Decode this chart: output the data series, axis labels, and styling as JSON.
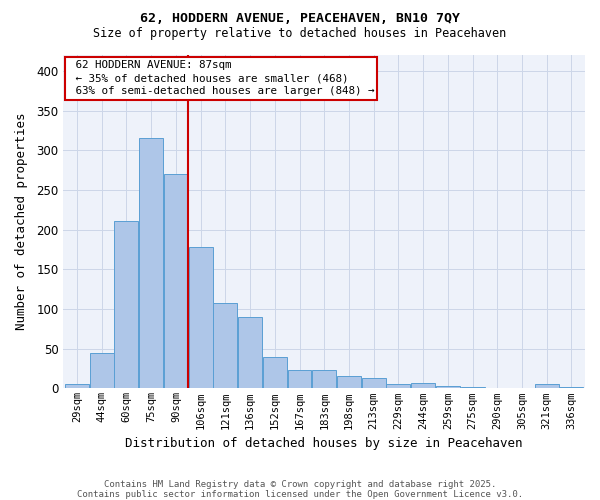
{
  "title1": "62, HODDERN AVENUE, PEACEHAVEN, BN10 7QY",
  "title2": "Size of property relative to detached houses in Peacehaven",
  "xlabel": "Distribution of detached houses by size in Peacehaven",
  "ylabel": "Number of detached properties",
  "bar_labels": [
    "29sqm",
    "44sqm",
    "60sqm",
    "75sqm",
    "90sqm",
    "106sqm",
    "121sqm",
    "136sqm",
    "152sqm",
    "167sqm",
    "183sqm",
    "198sqm",
    "213sqm",
    "229sqm",
    "244sqm",
    "259sqm",
    "275sqm",
    "290sqm",
    "305sqm",
    "321sqm",
    "336sqm"
  ],
  "bar_values": [
    5,
    44,
    211,
    315,
    270,
    178,
    108,
    90,
    40,
    23,
    23,
    15,
    13,
    5,
    7,
    3,
    2,
    0,
    0,
    5,
    2
  ],
  "bar_color": "#aec6e8",
  "bar_edge_color": "#5a9fd4",
  "property_label": "62 HODDERN AVENUE: 87sqm",
  "pct_smaller": "35% of detached houses are smaller (468)",
  "pct_larger": "63% of semi-detached houses are larger (848)",
  "red_line_color": "#cc0000",
  "annotation_box_color": "#cc0000",
  "ylim": [
    0,
    420
  ],
  "yticks": [
    0,
    50,
    100,
    150,
    200,
    250,
    300,
    350,
    400
  ],
  "grid_color": "#ccd6e8",
  "bg_color": "#eef2fa",
  "footer1": "Contains HM Land Registry data © Crown copyright and database right 2025.",
  "footer2": "Contains public sector information licensed under the Open Government Licence v3.0."
}
